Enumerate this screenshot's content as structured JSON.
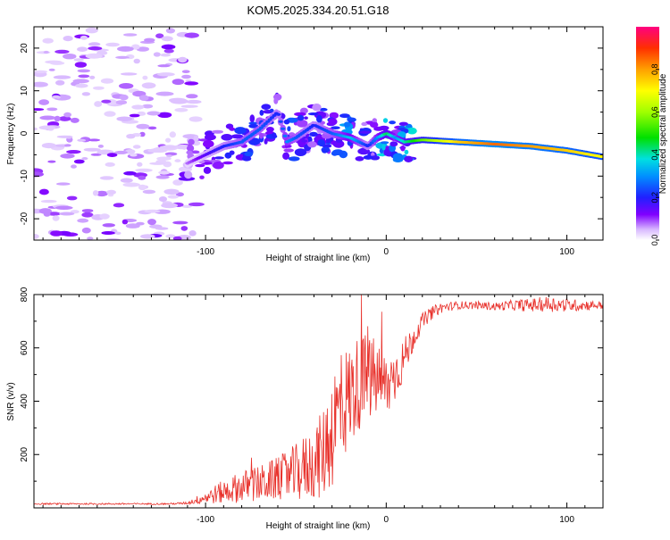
{
  "figure_title": "KOM5.2025.334.20.51.G18",
  "colors": {
    "snr_line": "#e8302a",
    "axis": "#000000",
    "spectrum_low": "#c8a0f8",
    "spectrum_high": "#ff2020"
  },
  "chart_data": [
    {
      "type": "heatmap",
      "title": "KOM5.2025.334.20.51.G18",
      "xlabel": "Height of straight line (km)",
      "ylabel": "Frequency (Hz)",
      "xlim": [
        -195,
        120
      ],
      "ylim": [
        -25,
        25
      ],
      "xticks": [
        -100,
        0,
        100
      ],
      "xtick_labels": [
        "-100",
        "0",
        "100"
      ],
      "yticks": [
        -20,
        -10,
        0,
        10,
        20
      ],
      "ytick_labels": [
        "-20",
        "-10",
        "0",
        "10",
        "20"
      ],
      "colorbar": {
        "label": "Normalized spectral amplitude",
        "range": [
          0,
          1
        ],
        "ticks": [
          0,
          0.2,
          0.4,
          0.6,
          0.8
        ],
        "tick_labels": [
          "0.0",
          "0.2",
          "0.4",
          "0.6",
          "0.8"
        ]
      },
      "ridge": {
        "x": [
          -110,
          -100,
          -90,
          -80,
          -70,
          -60,
          -55,
          -50,
          -40,
          -30,
          -20,
          -10,
          -5,
          0,
          5,
          10,
          20,
          40,
          60,
          80,
          100,
          120
        ],
        "frequency": [
          -7,
          -5,
          -3,
          -2,
          1,
          5,
          -2,
          -1,
          2,
          0,
          -1,
          -3,
          -1,
          0,
          -1,
          -2,
          -1.5,
          -2,
          -2.5,
          -3,
          -4,
          -5.5
        ],
        "amplitude": [
          0.08,
          0.15,
          0.2,
          0.25,
          0.25,
          0.2,
          0.3,
          0.25,
          0.2,
          0.25,
          0.35,
          0.2,
          0.3,
          0.45,
          0.3,
          0.4,
          0.55,
          0.75,
          0.85,
          0.8,
          0.75,
          0.7
        ]
      }
    },
    {
      "type": "line",
      "xlabel": "Height of straight line (km)",
      "ylabel": "SNR (v/v)",
      "xlim": [
        -195,
        120
      ],
      "ylim": [
        0,
        800
      ],
      "xticks": [
        -100,
        0,
        100
      ],
      "xtick_labels": [
        "-100",
        "0",
        "100"
      ],
      "yticks": [
        200,
        400,
        600,
        800
      ],
      "ytick_labels": [
        "200",
        "400",
        "600",
        "800"
      ],
      "x": [
        -195,
        -180,
        -160,
        -140,
        -120,
        -110,
        -100,
        -90,
        -80,
        -70,
        -60,
        -50,
        -40,
        -35,
        -30,
        -25,
        -20,
        -15,
        -10,
        -5,
        0,
        5,
        10,
        15,
        20,
        25,
        30,
        40,
        50,
        60,
        70,
        80,
        90,
        100,
        110,
        120
      ],
      "y": [
        15,
        15,
        15,
        15,
        15,
        18,
        40,
        60,
        80,
        90,
        110,
        130,
        170,
        200,
        300,
        380,
        420,
        470,
        490,
        480,
        450,
        500,
        560,
        640,
        700,
        730,
        750,
        760,
        760,
        755,
        760,
        760,
        765,
        760,
        760,
        760
      ],
      "noise_spread": [
        3,
        3,
        3,
        3,
        3,
        5,
        25,
        45,
        60,
        70,
        80,
        110,
        140,
        170,
        230,
        220,
        200,
        180,
        170,
        150,
        130,
        100,
        80,
        50,
        30,
        25,
        20,
        15,
        15,
        15,
        20,
        25,
        30,
        25,
        20,
        15
      ]
    }
  ]
}
